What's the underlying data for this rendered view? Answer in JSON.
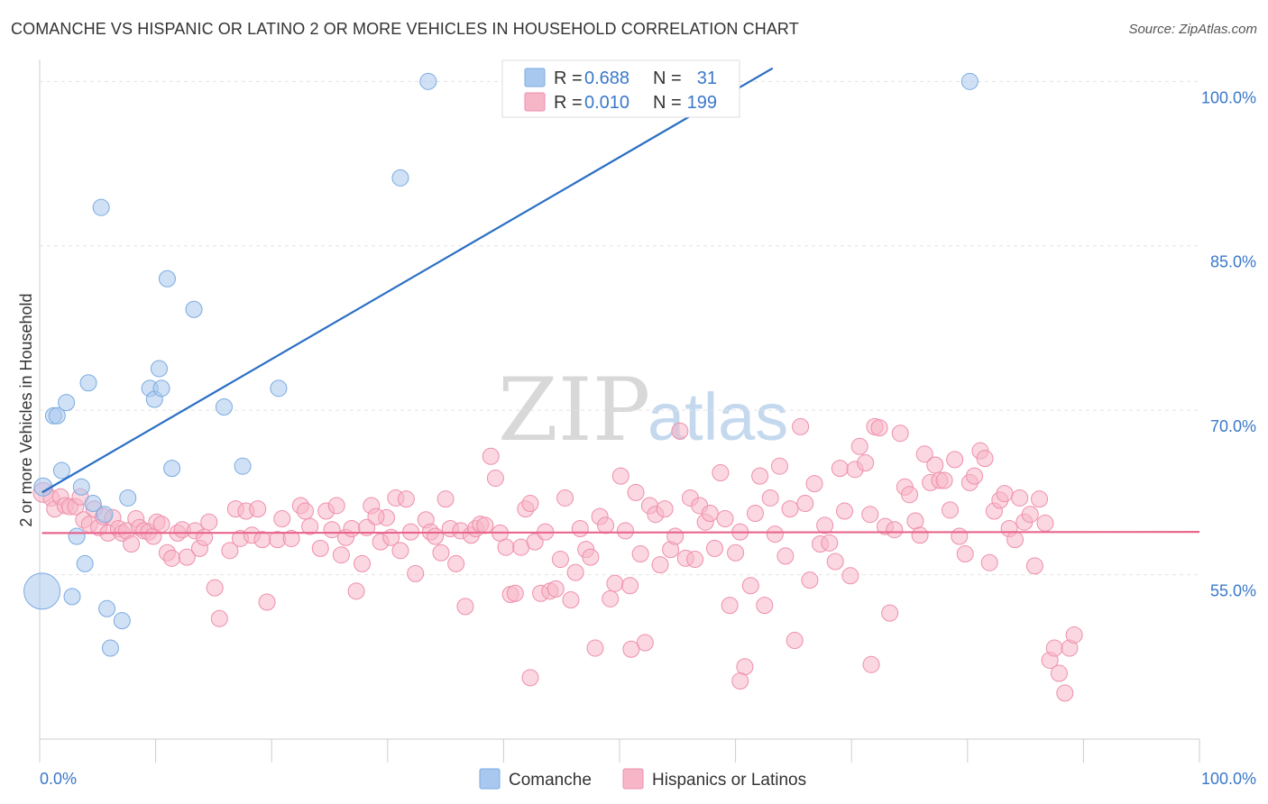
{
  "title": "COMANCHE VS HISPANIC OR LATINO 2 OR MORE VEHICLES IN HOUSEHOLD CORRELATION CHART",
  "source": "Source: ZipAtlas.com",
  "watermark": {
    "zip": "ZIP",
    "atlas": "atlas"
  },
  "legend": {
    "rows": [
      {
        "r_label": "R =",
        "r_value": "0.688",
        "n_label": "N =",
        "n_value": "31",
        "color": "#a9c8ef"
      },
      {
        "r_label": "R =",
        "r_value": "0.010",
        "n_label": "N =",
        "n_value": "199",
        "color": "#f7b6c8"
      }
    ]
  },
  "bottom_legend": [
    {
      "label": "Comanche",
      "color": "#a9c8ef"
    },
    {
      "label": "Hispanics or Latinos",
      "color": "#f7b6c8"
    }
  ],
  "chart_data": {
    "type": "scatter",
    "title": "COMANCHE VS HISPANIC OR LATINO 2 OR MORE VEHICLES IN HOUSEHOLD CORRELATION CHART",
    "xlabel": "",
    "ylabel": "2 or more Vehicles in Household",
    "xlim": [
      0,
      100
    ],
    "ylim": [
      40,
      102
    ],
    "x_tick_labels": [
      "0.0%",
      "100.0%"
    ],
    "y_ticks": [
      55,
      70,
      85,
      100
    ],
    "y_tick_labels": [
      "55.0%",
      "70.0%",
      "85.0%",
      "100.0%"
    ],
    "grid": true,
    "legend_position": "top-center",
    "series": [
      {
        "name": "Comanche",
        "color": "#a9c8ef",
        "stroke": "#7aaae0",
        "trend_color": "#2a6fc4",
        "trend": {
          "x": [
            0.2,
            63.2
          ],
          "y": [
            62.5,
            101.2
          ]
        },
        "points": [
          [
            0.3,
            63.0,
            10
          ],
          [
            0.2,
            53.5,
            20
          ],
          [
            1.2,
            69.5,
            9
          ],
          [
            1.5,
            69.5,
            9
          ],
          [
            1.9,
            64.5,
            9
          ],
          [
            2.3,
            70.7,
            9
          ],
          [
            2.8,
            53.0,
            9
          ],
          [
            3.2,
            58.5,
            9
          ],
          [
            3.6,
            63.0,
            9
          ],
          [
            3.9,
            56.0,
            9
          ],
          [
            4.2,
            72.5,
            9
          ],
          [
            4.6,
            61.5,
            9
          ],
          [
            5.3,
            88.5,
            9
          ],
          [
            5.6,
            60.5,
            9
          ],
          [
            5.8,
            51.9,
            9
          ],
          [
            6.1,
            48.3,
            9
          ],
          [
            7.1,
            50.8,
            9
          ],
          [
            7.6,
            62.0,
            9
          ],
          [
            9.5,
            72.0,
            9
          ],
          [
            9.9,
            71.0,
            9
          ],
          [
            10.3,
            73.8,
            9
          ],
          [
            10.5,
            72.0,
            9
          ],
          [
            11.0,
            82.0,
            9
          ],
          [
            11.4,
            64.7,
            9
          ],
          [
            13.3,
            79.2,
            9
          ],
          [
            15.9,
            70.3,
            9
          ],
          [
            17.5,
            64.9,
            9
          ],
          [
            20.6,
            72.0,
            9
          ],
          [
            31.1,
            91.2,
            9
          ],
          [
            33.5,
            100.0,
            9
          ],
          [
            80.2,
            100.0,
            9
          ]
        ]
      },
      {
        "name": "Hispanics or Latinos",
        "color": "#f7b6c8",
        "stroke": "#ee8fab",
        "trend_color": "#e8668d",
        "trend": {
          "x": [
            0.2,
            100
          ],
          "y": [
            58.8,
            58.9
          ]
        },
        "points": [
          [
            0.3,
            62.5,
            11
          ],
          [
            1.0,
            62.0,
            9
          ],
          [
            1.3,
            61.0,
            9
          ],
          [
            1.8,
            62.1,
            9
          ],
          [
            2.2,
            61.3,
            9
          ],
          [
            2.6,
            61.2,
            9
          ],
          [
            3.1,
            61.2,
            9
          ],
          [
            3.5,
            62.1,
            9
          ],
          [
            3.8,
            60.0,
            9
          ],
          [
            4.3,
            59.6,
            9
          ],
          [
            4.7,
            61.0,
            9
          ],
          [
            5.1,
            59.3,
            9
          ],
          [
            5.5,
            60.3,
            9
          ],
          [
            5.9,
            58.8,
            9
          ],
          [
            6.3,
            60.2,
            9
          ],
          [
            6.8,
            59.2,
            9
          ],
          [
            7.1,
            58.8,
            9
          ],
          [
            7.5,
            59.0,
            9
          ],
          [
            7.9,
            57.8,
            9
          ],
          [
            8.3,
            60.1,
            9
          ],
          [
            8.6,
            59.3,
            9
          ],
          [
            9.0,
            59.0,
            9
          ],
          [
            9.4,
            58.9,
            9
          ],
          [
            9.8,
            58.5,
            9
          ],
          [
            10.1,
            59.8,
            9
          ],
          [
            10.5,
            59.6,
            9
          ],
          [
            11.0,
            57.0,
            9
          ],
          [
            11.4,
            56.5,
            9
          ],
          [
            11.9,
            58.8,
            9
          ],
          [
            12.3,
            59.1,
            9
          ],
          [
            12.7,
            56.6,
            9
          ],
          [
            13.4,
            59.0,
            9
          ],
          [
            13.8,
            57.4,
            9
          ],
          [
            14.2,
            58.4,
            9
          ],
          [
            14.6,
            59.8,
            9
          ],
          [
            15.1,
            53.8,
            9
          ],
          [
            15.5,
            51.0,
            9
          ],
          [
            16.4,
            57.2,
            9
          ],
          [
            16.9,
            61.0,
            9
          ],
          [
            17.3,
            58.3,
            9
          ],
          [
            17.8,
            60.8,
            9
          ],
          [
            18.3,
            58.6,
            9
          ],
          [
            18.8,
            61.0,
            9
          ],
          [
            19.2,
            58.2,
            9
          ],
          [
            19.6,
            52.5,
            9
          ],
          [
            20.5,
            58.2,
            9
          ],
          [
            20.9,
            60.1,
            9
          ],
          [
            21.7,
            58.3,
            9
          ],
          [
            22.5,
            61.3,
            9
          ],
          [
            22.9,
            60.8,
            9
          ],
          [
            23.3,
            59.4,
            9
          ],
          [
            24.2,
            57.4,
            9
          ],
          [
            24.7,
            60.8,
            9
          ],
          [
            25.2,
            59.1,
            9
          ],
          [
            25.6,
            61.3,
            9
          ],
          [
            26.0,
            56.8,
            9
          ],
          [
            26.4,
            58.4,
            9
          ],
          [
            26.9,
            59.2,
            9
          ],
          [
            27.3,
            53.5,
            9
          ],
          [
            27.8,
            56.0,
            9
          ],
          [
            28.2,
            59.3,
            9
          ],
          [
            28.6,
            61.3,
            9
          ],
          [
            29.4,
            58.0,
            9
          ],
          [
            29.9,
            60.2,
            9
          ],
          [
            30.3,
            58.4,
            9
          ],
          [
            30.7,
            62.0,
            9
          ],
          [
            31.1,
            57.2,
            9
          ],
          [
            31.6,
            61.9,
            9
          ],
          [
            32.0,
            58.9,
            9
          ],
          [
            32.4,
            55.1,
            9
          ],
          [
            33.3,
            60.0,
            9
          ],
          [
            33.7,
            58.9,
            9
          ],
          [
            34.1,
            58.5,
            9
          ],
          [
            34.6,
            57.0,
            9
          ],
          [
            35.0,
            61.9,
            9
          ],
          [
            35.4,
            59.2,
            9
          ],
          [
            35.9,
            56.0,
            9
          ],
          [
            36.3,
            59.0,
            9
          ],
          [
            36.7,
            52.1,
            9
          ],
          [
            37.2,
            58.6,
            9
          ],
          [
            37.6,
            59.2,
            9
          ],
          [
            38.0,
            59.6,
            9
          ],
          [
            38.4,
            59.5,
            9
          ],
          [
            38.9,
            65.8,
            9
          ],
          [
            39.3,
            63.8,
            9
          ],
          [
            39.7,
            58.8,
            9
          ],
          [
            40.2,
            57.5,
            9
          ],
          [
            40.6,
            53.2,
            9
          ],
          [
            41.0,
            53.3,
            9
          ],
          [
            41.5,
            57.5,
            9
          ],
          [
            41.9,
            61.0,
            9
          ],
          [
            42.3,
            61.5,
            9
          ],
          [
            42.7,
            58.0,
            9
          ],
          [
            43.2,
            53.3,
            9
          ],
          [
            43.6,
            58.9,
            9
          ],
          [
            44.0,
            53.5,
            9
          ],
          [
            44.5,
            53.7,
            9
          ],
          [
            44.9,
            56.4,
            9
          ],
          [
            45.3,
            62.0,
            9
          ],
          [
            45.8,
            52.7,
            9
          ],
          [
            46.2,
            55.2,
            9
          ],
          [
            46.6,
            59.2,
            9
          ],
          [
            47.1,
            57.3,
            9
          ],
          [
            47.5,
            56.6,
            9
          ],
          [
            47.9,
            48.3,
            9
          ],
          [
            48.3,
            60.3,
            9
          ],
          [
            48.8,
            59.5,
            9
          ],
          [
            49.2,
            52.8,
            9
          ],
          [
            49.6,
            54.2,
            9
          ],
          [
            50.1,
            64.0,
            9
          ],
          [
            50.5,
            59.0,
            9
          ],
          [
            50.9,
            54.0,
            9
          ],
          [
            51.4,
            62.5,
            9
          ],
          [
            51.8,
            56.9,
            9
          ],
          [
            52.2,
            48.8,
            9
          ],
          [
            52.6,
            61.3,
            9
          ],
          [
            53.1,
            60.5,
            9
          ],
          [
            53.5,
            55.9,
            9
          ],
          [
            53.9,
            61.0,
            9
          ],
          [
            54.4,
            57.3,
            9
          ],
          [
            54.8,
            58.5,
            9
          ],
          [
            55.2,
            68.1,
            9
          ],
          [
            55.7,
            56.5,
            9
          ],
          [
            56.1,
            62.0,
            9
          ],
          [
            56.5,
            56.4,
            9
          ],
          [
            56.9,
            61.3,
            9
          ],
          [
            57.4,
            59.8,
            9
          ],
          [
            57.8,
            60.6,
            9
          ],
          [
            58.2,
            57.4,
            9
          ],
          [
            58.7,
            64.3,
            9
          ],
          [
            59.1,
            60.1,
            9
          ],
          [
            59.5,
            52.2,
            9
          ],
          [
            60.0,
            57.0,
            9
          ],
          [
            60.4,
            58.9,
            9
          ],
          [
            60.8,
            46.6,
            9
          ],
          [
            61.3,
            54.0,
            9
          ],
          [
            61.7,
            60.6,
            9
          ],
          [
            62.1,
            64.0,
            9
          ],
          [
            62.5,
            52.2,
            9
          ],
          [
            63.0,
            62.0,
            9
          ],
          [
            63.4,
            58.7,
            9
          ],
          [
            63.8,
            64.9,
            9
          ],
          [
            64.3,
            56.7,
            9
          ],
          [
            64.7,
            61.0,
            9
          ],
          [
            65.1,
            49.0,
            9
          ],
          [
            65.6,
            68.5,
            9
          ],
          [
            66.0,
            61.5,
            9
          ],
          [
            66.4,
            54.5,
            9
          ],
          [
            66.8,
            63.3,
            9
          ],
          [
            67.3,
            57.8,
            9
          ],
          [
            67.7,
            59.5,
            9
          ],
          [
            68.1,
            57.9,
            9
          ],
          [
            68.6,
            56.2,
            9
          ],
          [
            69.0,
            64.7,
            9
          ],
          [
            69.4,
            60.8,
            9
          ],
          [
            69.9,
            54.9,
            9
          ],
          [
            70.3,
            64.6,
            9
          ],
          [
            70.7,
            66.7,
            9
          ],
          [
            71.2,
            65.2,
            9
          ],
          [
            71.6,
            60.5,
            9
          ],
          [
            72.0,
            68.5,
            9
          ],
          [
            72.4,
            68.4,
            9
          ],
          [
            72.9,
            59.4,
            9
          ],
          [
            73.3,
            51.5,
            9
          ],
          [
            73.7,
            59.1,
            9
          ],
          [
            74.2,
            67.9,
            9
          ],
          [
            74.6,
            63.0,
            9
          ],
          [
            75.0,
            62.3,
            9
          ],
          [
            75.5,
            59.9,
            9
          ],
          [
            75.9,
            58.6,
            9
          ],
          [
            76.3,
            66.0,
            9
          ],
          [
            76.8,
            63.4,
            9
          ],
          [
            77.2,
            65.0,
            9
          ],
          [
            77.6,
            63.6,
            9
          ],
          [
            78.0,
            63.6,
            9
          ],
          [
            78.5,
            60.9,
            9
          ],
          [
            78.9,
            65.5,
            9
          ],
          [
            79.3,
            58.5,
            9
          ],
          [
            79.8,
            56.9,
            9
          ],
          [
            80.2,
            63.4,
            9
          ],
          [
            80.6,
            64.0,
            9
          ],
          [
            81.1,
            66.3,
            9
          ],
          [
            81.5,
            65.6,
            9
          ],
          [
            81.9,
            56.1,
            9
          ],
          [
            82.3,
            60.8,
            9
          ],
          [
            82.8,
            61.8,
            9
          ],
          [
            83.2,
            62.4,
            9
          ],
          [
            83.6,
            59.2,
            9
          ],
          [
            84.1,
            58.2,
            9
          ],
          [
            84.5,
            62.0,
            9
          ],
          [
            84.9,
            59.8,
            9
          ],
          [
            85.4,
            60.5,
            9
          ],
          [
            85.8,
            55.8,
            9
          ],
          [
            86.2,
            61.9,
            9
          ],
          [
            86.7,
            59.7,
            9
          ],
          [
            87.1,
            47.2,
            9
          ],
          [
            87.5,
            48.3,
            9
          ],
          [
            87.9,
            46.0,
            9
          ],
          [
            88.4,
            44.2,
            9
          ],
          [
            88.8,
            48.3,
            9
          ],
          [
            89.2,
            49.5,
            9
          ],
          [
            42.3,
            45.6,
            9
          ],
          [
            60.4,
            45.3,
            9
          ],
          [
            71.7,
            46.8,
            9
          ],
          [
            29.0,
            60.3,
            9
          ],
          [
            51.0,
            48.2,
            9
          ]
        ]
      }
    ]
  }
}
